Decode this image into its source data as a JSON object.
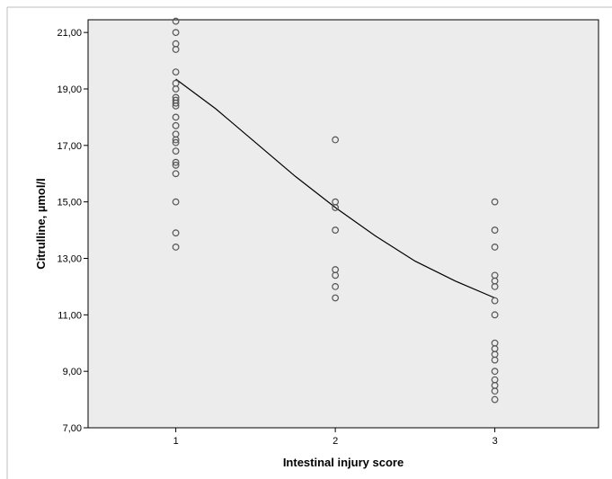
{
  "chart_data": {
    "type": "scatter",
    "xlabel": "Intestinal injury score",
    "ylabel": "Citrulline, µmol/l",
    "x_ticks": [
      "1",
      "2",
      "3"
    ],
    "y_ticks": [
      "7,00",
      "9,00",
      "11,00",
      "13,00",
      "15,00",
      "17,00",
      "19,00",
      "21,00"
    ],
    "xlim": [
      0.45,
      3.65
    ],
    "ylim": [
      7,
      21.45
    ],
    "grid": false,
    "plot_background": "#ececec",
    "marker_color": "#555555",
    "line_color": "#000000",
    "series": [
      {
        "type": "points",
        "points": [
          [
            1,
            21.4
          ],
          [
            1,
            21.0
          ],
          [
            1,
            20.6
          ],
          [
            1,
            20.4
          ],
          [
            1,
            19.6
          ],
          [
            1,
            19.2
          ],
          [
            1,
            19.0
          ],
          [
            1,
            18.7
          ],
          [
            1,
            18.6
          ],
          [
            1,
            18.5
          ],
          [
            1,
            18.4
          ],
          [
            1,
            18.0
          ],
          [
            1,
            17.7
          ],
          [
            1,
            17.4
          ],
          [
            1,
            17.2
          ],
          [
            1,
            17.1
          ],
          [
            1,
            16.8
          ],
          [
            1,
            16.4
          ],
          [
            1,
            16.3
          ],
          [
            1,
            16.0
          ],
          [
            1,
            15.0
          ],
          [
            1,
            13.9
          ],
          [
            1,
            13.4
          ],
          [
            2,
            17.2
          ],
          [
            2,
            15.0
          ],
          [
            2,
            14.8
          ],
          [
            2,
            14.0
          ],
          [
            2,
            12.6
          ],
          [
            2,
            12.4
          ],
          [
            2,
            12.0
          ],
          [
            2,
            11.6
          ],
          [
            3,
            15.0
          ],
          [
            3,
            14.0
          ],
          [
            3,
            13.4
          ],
          [
            3,
            12.4
          ],
          [
            3,
            12.2
          ],
          [
            3,
            12.0
          ],
          [
            3,
            11.5
          ],
          [
            3,
            11.0
          ],
          [
            3,
            10.0
          ],
          [
            3,
            9.8
          ],
          [
            3,
            9.6
          ],
          [
            3,
            9.4
          ],
          [
            3,
            9.0
          ],
          [
            3,
            8.7
          ],
          [
            3,
            8.5
          ],
          [
            3,
            8.3
          ],
          [
            3,
            8.0
          ]
        ]
      },
      {
        "type": "curve",
        "points": [
          [
            1,
            19.35
          ],
          [
            1.25,
            18.3
          ],
          [
            1.5,
            17.1
          ],
          [
            1.75,
            15.9
          ],
          [
            2,
            14.8
          ],
          [
            2.25,
            13.8
          ],
          [
            2.5,
            12.9
          ],
          [
            2.75,
            12.2
          ],
          [
            3,
            11.6
          ]
        ]
      }
    ]
  }
}
